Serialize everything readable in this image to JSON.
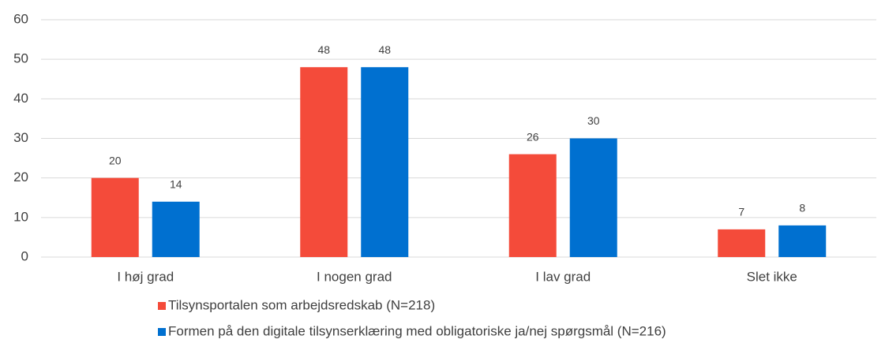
{
  "chart_data": {
    "type": "bar",
    "categories": [
      "I høj grad",
      "I nogen grad",
      "I lav grad",
      "Slet ikke"
    ],
    "series": [
      {
        "name": "Tilsynsportalen som arbejdsredskab (N=218)",
        "color": "#f44b3a",
        "values": [
          20,
          48,
          26,
          7
        ]
      },
      {
        "name": "Formen på den digitale tilsynserklæring med obligatoriske ja/nej spørgsmål (N=216)",
        "color": "#0070d0",
        "values": [
          14,
          48,
          30,
          8
        ]
      }
    ],
    "ylim": [
      0,
      60
    ],
    "yticks": [
      0,
      10,
      20,
      30,
      40,
      50,
      60
    ],
    "grid": true,
    "legend": "bottom"
  }
}
